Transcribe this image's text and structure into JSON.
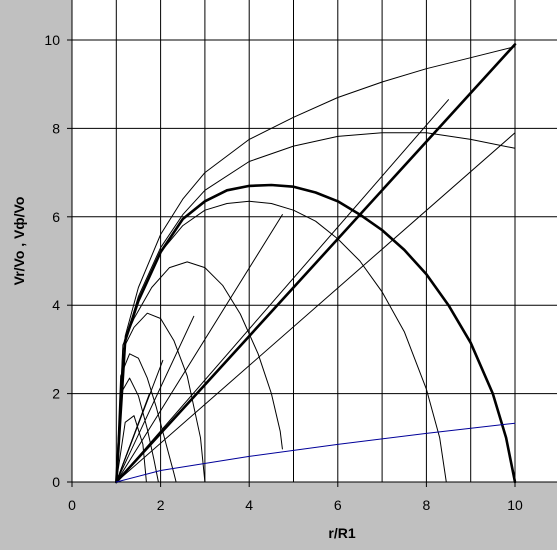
{
  "chart_data": {
    "type": "line",
    "title": "",
    "xlabel": "r/R1",
    "ylabel": "Vr/Vo , Vф/Vo",
    "xlim": [
      0,
      12
    ],
    "ylim": [
      0,
      10
    ],
    "xticks": [
      0,
      2,
      4,
      6,
      8,
      10
    ],
    "yticks": [
      0,
      2,
      4,
      6,
      8,
      10
    ],
    "grid": true,
    "legend": "none",
    "colors": {
      "background": "#c0c0c0",
      "plot_area": "#ffffff",
      "grid": "#000000",
      "series": "#000000",
      "blue_series": "#000099"
    },
    "series": [
      {
        "style": "thin",
        "x": [
          1.0,
          1.2,
          1.4,
          1.6,
          1.68
        ],
        "y": [
          0.0,
          1.35,
          1.5,
          0.85,
          0.0
        ]
      },
      {
        "style": "thin",
        "x": [
          1.0,
          1.1,
          1.3,
          1.5,
          1.7,
          1.85,
          1.95
        ],
        "y": [
          0.0,
          2.0,
          2.35,
          1.95,
          1.2,
          0.5,
          0.0
        ]
      },
      {
        "style": "thin",
        "x": [
          1.0,
          1.1,
          1.3,
          1.5,
          1.7,
          1.9,
          2.1,
          2.3,
          2.35
        ],
        "y": [
          0.0,
          2.4,
          2.9,
          2.8,
          2.35,
          1.7,
          0.95,
          0.2,
          0.0
        ]
      },
      {
        "style": "thin",
        "x": [
          1.0,
          1.15,
          1.4,
          1.7,
          2.0,
          2.3,
          2.6,
          2.9,
          3.0
        ],
        "y": [
          0.0,
          3.0,
          3.5,
          3.82,
          3.7,
          3.2,
          2.4,
          1.0,
          0.0
        ]
      },
      {
        "style": "thin",
        "x": [
          1.0,
          1.15,
          1.4,
          1.8,
          2.2,
          2.6,
          3.0,
          3.4,
          3.8,
          4.2,
          4.5,
          4.7,
          4.75
        ],
        "y": [
          0.0,
          3.1,
          3.7,
          4.4,
          4.85,
          4.98,
          4.85,
          4.45,
          3.8,
          2.9,
          2.0,
          1.15,
          0.75
        ]
      },
      {
        "style": "thin",
        "x": [
          1.0,
          1.2,
          1.5,
          2.0,
          2.5,
          3.0,
          3.5,
          4.0,
          4.5,
          5.0,
          5.5,
          6.0,
          6.5,
          7.0,
          7.5,
          8.0,
          8.3,
          8.45
        ],
        "y": [
          0.0,
          3.2,
          4.1,
          5.2,
          5.8,
          6.15,
          6.3,
          6.35,
          6.3,
          6.15,
          5.9,
          5.5,
          5.0,
          4.3,
          3.4,
          2.1,
          1.0,
          0.0
        ]
      },
      {
        "style": "thick",
        "x": [
          1.0,
          1.2,
          1.5,
          2.0,
          2.5,
          3.0,
          3.5,
          4.0,
          4.5,
          5.0,
          5.5,
          6.0,
          6.5,
          7.0,
          7.5,
          8.0,
          8.5,
          9.0,
          9.5,
          9.8,
          10.0
        ],
        "y": [
          0.0,
          3.2,
          4.1,
          5.2,
          5.95,
          6.35,
          6.6,
          6.7,
          6.72,
          6.68,
          6.55,
          6.35,
          6.05,
          5.7,
          5.25,
          4.7,
          4.0,
          3.15,
          2.0,
          1.0,
          0.0
        ]
      },
      {
        "style": "thin",
        "x": [
          1.0,
          1.2,
          1.5,
          2.0,
          2.5,
          3.0,
          4.0,
          5.0,
          6.0,
          7.0,
          8.0,
          9.0,
          10.0
        ],
        "y": [
          0.0,
          3.2,
          4.2,
          5.3,
          6.05,
          6.6,
          7.25,
          7.6,
          7.82,
          7.9,
          7.9,
          7.75,
          7.55
        ]
      },
      {
        "style": "thin",
        "x": [
          1.0,
          1.2,
          1.5,
          2.0,
          2.5,
          3.0,
          4.0,
          5.0,
          6.0,
          7.0,
          8.0,
          9.0,
          10.0
        ],
        "y": [
          0.0,
          3.3,
          4.4,
          5.6,
          6.4,
          7.0,
          7.75,
          8.25,
          8.7,
          9.05,
          9.35,
          9.6,
          9.85
        ]
      },
      {
        "style": "thin",
        "x": [
          1.0,
          1.4
        ],
        "y": [
          0.0,
          1.05
        ]
      },
      {
        "style": "thin",
        "x": [
          1.0,
          1.6
        ],
        "y": [
          0.0,
          1.6
        ]
      },
      {
        "style": "thin",
        "x": [
          1.0,
          1.75
        ],
        "y": [
          0.0,
          2.0
        ]
      },
      {
        "style": "thin",
        "x": [
          1.0,
          2.05
        ],
        "y": [
          0.0,
          2.75
        ]
      },
      {
        "style": "thin",
        "x": [
          1.0,
          2.75
        ],
        "y": [
          0.0,
          3.75
        ]
      },
      {
        "style": "thin",
        "x": [
          1.0,
          4.75
        ],
        "y": [
          0.0,
          6.05
        ]
      },
      {
        "style": "thin",
        "x": [
          1.0,
          8.5
        ],
        "y": [
          0.0,
          8.65
        ]
      },
      {
        "style": "thin",
        "x": [
          1.0,
          10.0
        ],
        "y": [
          0.0,
          7.9
        ]
      },
      {
        "style": "thick",
        "x": [
          1.0,
          10.0
        ],
        "y": [
          0.0,
          9.9
        ]
      },
      {
        "style": "blue",
        "x": [
          1.0,
          2.0,
          4.0,
          6.0,
          8.0,
          10.0
        ],
        "y": [
          0.0,
          0.26,
          0.58,
          0.85,
          1.1,
          1.33
        ]
      }
    ]
  }
}
